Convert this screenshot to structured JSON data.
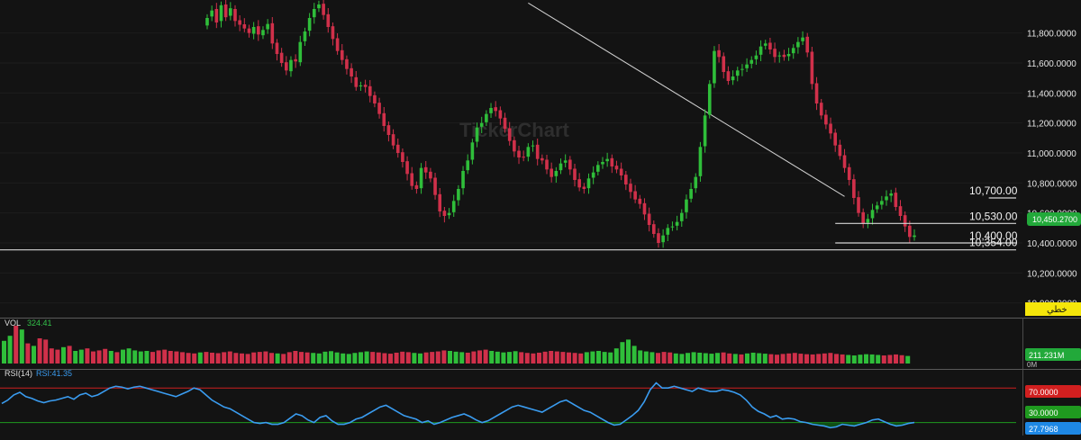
{
  "chart_data": [
    {
      "type": "candlestick",
      "title": "",
      "ylim": [
        9920,
        12020
      ],
      "y_ticks": [
        "10,000.0000",
        "10,200.0000",
        "10,400.0000",
        "10,600.0000",
        "10,800.0000",
        "11,000.0000",
        "11,200.0000",
        "11,400.0000",
        "11,600.0000",
        "11,800.0000"
      ],
      "y_tick_values": [
        10000,
        10200,
        10400,
        10600,
        10800,
        11000,
        11200,
        11400,
        11600,
        11800
      ],
      "last_price_label": "10,450.2700",
      "last_price": 10450.27,
      "chart_type_label": "خطي",
      "watermark": "TickerChart",
      "horizontal_levels": [
        {
          "label": "10,700.00",
          "value": 10700,
          "start_bar": 168
        },
        {
          "label": "10,530.00",
          "value": 10530,
          "start_bar": 135
        },
        {
          "label": "10,400.00",
          "value": 10400,
          "start_bar": 135
        },
        {
          "label": "10,354.00",
          "value": 10354,
          "start_bar": 0
        }
      ],
      "trendline": {
        "start": [
          69,
          12000
        ],
        "end": [
          137,
          10710
        ]
      },
      "bar_values": [
        11900,
        11950,
        11870,
        11985,
        11905,
        11965,
        11880,
        11855,
        11830,
        11800,
        11840,
        11790,
        11820,
        11860,
        11730,
        11660,
        11600,
        11550,
        11620,
        11610,
        11740,
        11810,
        11900,
        11960,
        11990,
        11920,
        11840,
        11760,
        11680,
        11620,
        11560,
        11510,
        11440,
        11450,
        11440,
        11380,
        11330,
        11260,
        11180,
        11120,
        11050,
        11000,
        10940,
        10860,
        10780,
        10760,
        10900,
        10870,
        10830,
        10720,
        10610,
        10580,
        10600,
        10680,
        10760,
        10880,
        10950,
        11070,
        11170,
        11200,
        11260,
        11300,
        11280,
        11230,
        11160,
        11080,
        11010,
        10970,
        10970,
        11040,
        11050,
        10960,
        10950,
        10890,
        10840,
        10880,
        10930,
        10950,
        10890,
        10820,
        10770,
        10760,
        10830,
        10870,
        10920,
        10940,
        10960,
        10910,
        10890,
        10850,
        10790,
        10740,
        10690,
        10660,
        10590,
        10520,
        10460,
        10400,
        10450,
        10500,
        10510,
        10540,
        10600,
        10690,
        10760,
        10840,
        11040,
        11250,
        11460,
        11680,
        11640,
        11540,
        11480,
        11510,
        11550,
        11560,
        11590,
        11620,
        11650,
        11710,
        11730,
        11690,
        11640,
        11650,
        11640,
        11660,
        11700,
        11740,
        11770,
        11670,
        11460,
        11330,
        11250,
        11190,
        11130,
        11050,
        10980,
        10900,
        10820,
        10700,
        10600,
        10530,
        10560,
        10620,
        10650,
        10680,
        10710,
        10730,
        10640,
        10580,
        10510,
        10440,
        10450
      ],
      "bar_opens": [
        11850,
        11910,
        11960,
        11880,
        11990,
        11915,
        11960,
        11885,
        11858,
        11830,
        11795,
        11845,
        11785,
        11825,
        11865,
        11735,
        11668,
        11605,
        11545,
        11625,
        11605,
        11745,
        11815,
        11905,
        11965,
        11995,
        11925,
        11845,
        11765,
        11685,
        11625,
        11565,
        11505,
        11445,
        11455,
        11445,
        11385,
        11335,
        11265,
        11185,
        11125,
        11055,
        11005,
        10945,
        10865,
        10785,
        10765,
        10905,
        10875,
        10835,
        10725,
        10615,
        10585,
        10605,
        10685,
        10765,
        10885,
        10955,
        11075,
        11175,
        11205,
        11265,
        11305,
        11285,
        11235,
        11165,
        11085,
        11015,
        10975,
        10975,
        11045,
        11055,
        10965,
        10955,
        10895,
        10845,
        10885,
        10935,
        10955,
        10895,
        10825,
        10775,
        10765,
        10835,
        10875,
        10925,
        10945,
        10965,
        10915,
        10895,
        10855,
        10795,
        10745,
        10695,
        10665,
        10595,
        10525,
        10465,
        10405,
        10455,
        10505,
        10515,
        10545,
        10605,
        10695,
        10765,
        10845,
        11045,
        11255,
        11465,
        11685,
        11645,
        11545,
        11485,
        11515,
        11555,
        11565,
        11595,
        11625,
        11655,
        11715,
        11735,
        11695,
        11645,
        11655,
        11645,
        11665,
        11705,
        11745,
        11775,
        11675,
        11465,
        11335,
        11255,
        11195,
        11135,
        11055,
        10985,
        10905,
        10825,
        10705,
        10605,
        10535,
        10565,
        10625,
        10655,
        10685,
        10715,
        10735,
        10645,
        10585,
        10515,
        10440
      ],
      "volume": {
        "label": "VOL",
        "value_label": "324.41",
        "last_label": "211.231M",
        "axis_label": "0M",
        "values": [
          90,
          110,
          150,
          135,
          80,
          70,
          100,
          95,
          60,
          55,
          65,
          70,
          50,
          55,
          60,
          48,
          52,
          58,
          50,
          45,
          55,
          60,
          52,
          48,
          50,
          46,
          52,
          55,
          50,
          48,
          45,
          42,
          40,
          44,
          46,
          43,
          41,
          45,
          48,
          42,
          40,
          38,
          44,
          46,
          48,
          42,
          40,
          38,
          45,
          50,
          46,
          44,
          42,
          40,
          47,
          49,
          44,
          40,
          38,
          42,
          45,
          48,
          46,
          44,
          41,
          39,
          43,
          47,
          45,
          42,
          40,
          44,
          46,
          48,
          52,
          50,
          47,
          45,
          43,
          48,
          52,
          55,
          50,
          47,
          44,
          46,
          49,
          45,
          42,
          40,
          43,
          47,
          50,
          48,
          46,
          44,
          42,
          40,
          45,
          48,
          50,
          46,
          44,
          60,
          85,
          95,
          70,
          52,
          48,
          45,
          42,
          46,
          44,
          40,
          38,
          42,
          45,
          43,
          41,
          39,
          42,
          44,
          40,
          38,
          36,
          40,
          43,
          41,
          39,
          37,
          35,
          38,
          40,
          42,
          39,
          37,
          36,
          38,
          40,
          42,
          38,
          36,
          34,
          32,
          35,
          37,
          36,
          34,
          32,
          34,
          36,
          33,
          30
        ]
      },
      "rsi": {
        "label": "RSI(14)",
        "value_label": "RSI:41.35",
        "level_high": 70,
        "level_high_label": "70.0000",
        "level_low": 30,
        "level_low_label": "30.0000",
        "last_label": "27.7968",
        "values": [
          52,
          56,
          62,
          65,
          60,
          58,
          55,
          53,
          55,
          56,
          58,
          60,
          57,
          62,
          64,
          60,
          62,
          66,
          70,
          72,
          71,
          69,
          71,
          72,
          70,
          68,
          66,
          64,
          62,
          60,
          63,
          66,
          70,
          68,
          62,
          56,
          52,
          48,
          46,
          42,
          38,
          34,
          30,
          29,
          30,
          28,
          28,
          30,
          35,
          40,
          38,
          33,
          30,
          36,
          38,
          32,
          28,
          28,
          30,
          34,
          36,
          40,
          44,
          48,
          50,
          46,
          42,
          38,
          36,
          34,
          30,
          32,
          28,
          30,
          33,
          36,
          38,
          40,
          37,
          33,
          30,
          32,
          36,
          40,
          44,
          48,
          50,
          48,
          46,
          44,
          42,
          46,
          50,
          54,
          56,
          52,
          48,
          44,
          42,
          38,
          34,
          30,
          27,
          28,
          33,
          38,
          44,
          54,
          68,
          76,
          70,
          70,
          72,
          70,
          68,
          66,
          70,
          68,
          66,
          66,
          68,
          67,
          65,
          62,
          56,
          48,
          43,
          40,
          36,
          38,
          34,
          35,
          34,
          31,
          30,
          28,
          27,
          26,
          24,
          25,
          28,
          27,
          26,
          28,
          30,
          33,
          34,
          31,
          28,
          26,
          27,
          29,
          30
        ]
      }
    }
  ]
}
